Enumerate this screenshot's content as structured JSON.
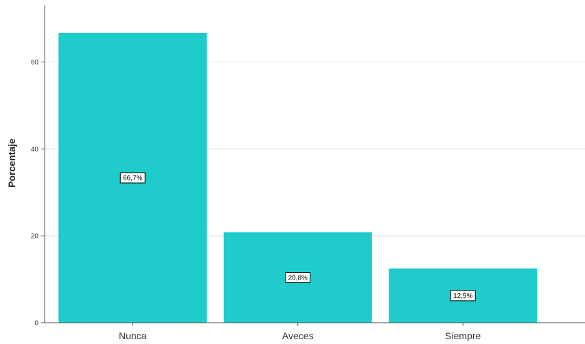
{
  "chart_data": {
    "type": "bar",
    "categories": [
      "Nunca",
      "Aveces",
      "Siempre"
    ],
    "values": [
      66.7,
      20.8,
      12.5
    ],
    "data_labels": [
      "66,7%",
      "20,8%",
      "12,5%"
    ],
    "title": "",
    "xlabel": "",
    "ylabel": "Porcentaje",
    "ylim": [
      0,
      73
    ],
    "yticks": [
      0,
      20,
      40,
      60
    ],
    "ytick_labels": [
      "0",
      "20",
      "40",
      "60"
    ],
    "grid": true,
    "bar_color": "#1fcbcb",
    "grid_color": "#d9d9d9",
    "axis_color": "#555555"
  }
}
